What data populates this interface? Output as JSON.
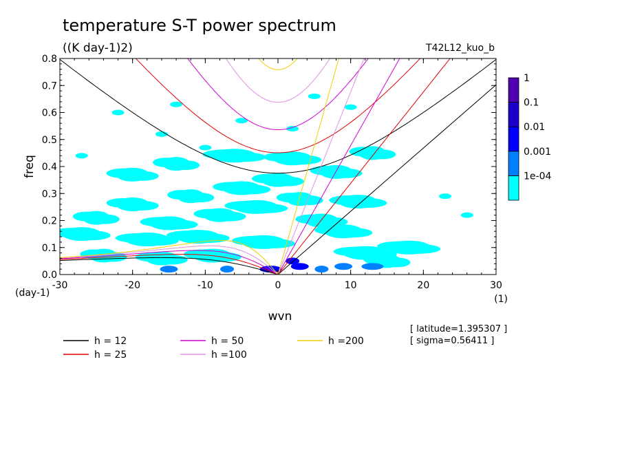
{
  "chart_data": {
    "type": "heatmap",
    "title": "temperature S-T power spectrum",
    "subtitle": "((K day-1)2)",
    "run_label": "T42L12_kuo_b",
    "xlabel": "wvn",
    "xunit": "(1)",
    "ylabel": "freq",
    "yunit": "(day-1)",
    "xlim": [
      -30,
      30
    ],
    "ylim": [
      0,
      0.8
    ],
    "xticks": [
      "-30",
      "-20",
      "-10",
      "0",
      "10",
      "20",
      "30"
    ],
    "yticks": [
      "0.0",
      "0.1",
      "0.2",
      "0.3",
      "0.4",
      "0.5",
      "0.6",
      "0.7",
      "0.8"
    ],
    "log_scale_colorbar": true,
    "colorbar": {
      "labels": [
        "1",
        "0.1",
        "0.01",
        "0.001",
        "1e-04"
      ],
      "colors": [
        "#00ffff",
        "#0080ff",
        "#0000ff",
        "#1a00c8",
        "#5000b0"
      ]
    },
    "background_blobs": [
      {
        "x": -25,
        "y": 0.21
      },
      {
        "x": -20,
        "y": 0.26
      },
      {
        "x": -15,
        "y": 0.19
      },
      {
        "x": -18,
        "y": 0.13
      },
      {
        "x": -12,
        "y": 0.29
      },
      {
        "x": -8,
        "y": 0.22
      },
      {
        "x": -5,
        "y": 0.32
      },
      {
        "x": -3,
        "y": 0.25
      },
      {
        "x": -24,
        "y": 0.07
      },
      {
        "x": -16,
        "y": 0.06
      },
      {
        "x": -9,
        "y": 0.07
      },
      {
        "x": -2,
        "y": 0.12
      },
      {
        "x": 3,
        "y": 0.28
      },
      {
        "x": 6,
        "y": 0.2
      },
      {
        "x": 9,
        "y": 0.16
      },
      {
        "x": 12,
        "y": 0.08
      },
      {
        "x": 15,
        "y": 0.05
      },
      {
        "x": 8,
        "y": 0.38
      },
      {
        "x": 2,
        "y": 0.43
      },
      {
        "x": -6,
        "y": 0.44
      },
      {
        "x": -14,
        "y": 0.41
      },
      {
        "x": -20,
        "y": 0.37
      },
      {
        "x": 11,
        "y": 0.27
      },
      {
        "x": -11,
        "y": 0.14
      },
      {
        "x": 13,
        "y": 0.45
      },
      {
        "x": 0,
        "y": 0.35
      },
      {
        "x": -27,
        "y": 0.15
      },
      {
        "x": 18,
        "y": 0.1
      }
    ],
    "sparse_blobs": [
      {
        "x": -22,
        "y": 0.6
      },
      {
        "x": -16,
        "y": 0.52
      },
      {
        "x": -14,
        "y": 0.63
      },
      {
        "x": -5,
        "y": 0.57
      },
      {
        "x": -10,
        "y": 0.47
      },
      {
        "x": -27,
        "y": 0.44
      },
      {
        "x": 2,
        "y": 0.54
      },
      {
        "x": 10,
        "y": 0.62
      },
      {
        "x": 23,
        "y": 0.29
      },
      {
        "x": 26,
        "y": 0.22
      },
      {
        "x": 5,
        "y": 0.66
      }
    ],
    "strong_blobs": [
      {
        "x": 2,
        "y": 0.05
      },
      {
        "x": 3,
        "y": 0.03
      },
      {
        "x": -1,
        "y": 0.02
      },
      {
        "x": 6,
        "y": 0.02
      },
      {
        "x": 9,
        "y": 0.03
      },
      {
        "x": 13,
        "y": 0.03
      },
      {
        "x": -7,
        "y": 0.02
      },
      {
        "x": -15,
        "y": 0.02
      }
    ],
    "series": [
      {
        "name": "h = 12",
        "h": 12,
        "color": "#000000"
      },
      {
        "name": "h = 25",
        "h": 25,
        "color": "#e00000"
      },
      {
        "name": "h = 50",
        "h": 50,
        "color": "#d000d0"
      },
      {
        "name": "h =100",
        "h": 100,
        "color": "#e090e0"
      },
      {
        "name": "h =200",
        "h": 200,
        "color": "#f0d000"
      }
    ],
    "annotations": [
      "[ latitude=1.395307 ]",
      "[ sigma=0.56411 ]"
    ]
  }
}
